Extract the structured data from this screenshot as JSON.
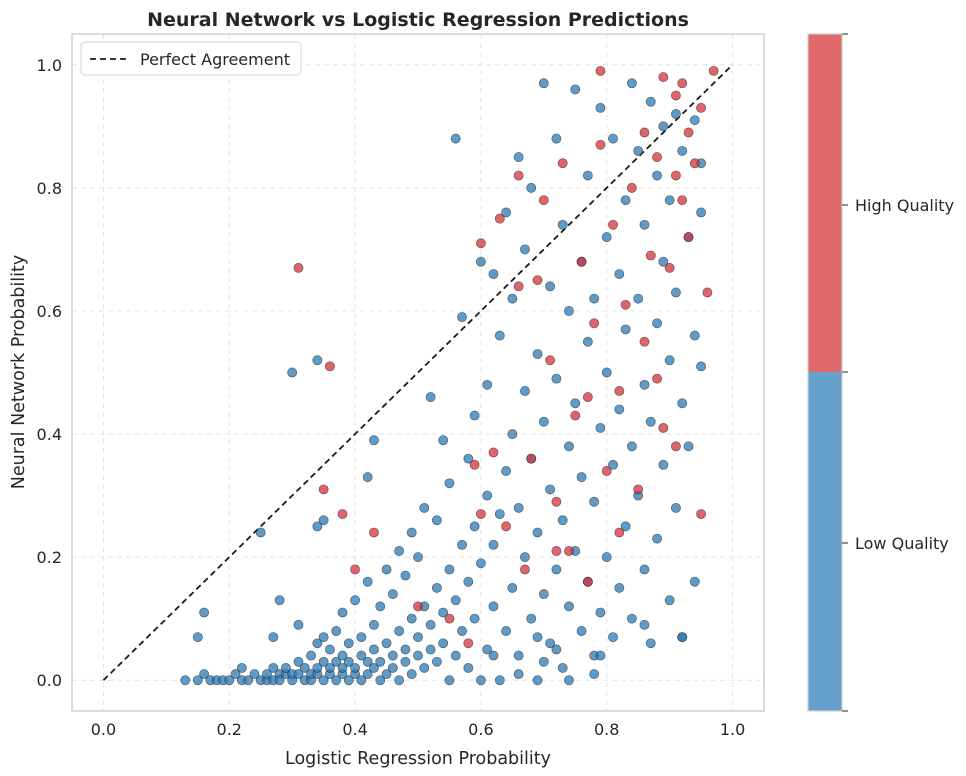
{
  "chart_data": {
    "type": "scatter",
    "title": "Neural Network vs Logistic Regression Predictions",
    "xlabel": "Logistic Regression Probability",
    "ylabel": "Neural Network Probability",
    "xlim": [
      -0.05,
      1.05
    ],
    "ylim": [
      -0.05,
      1.05
    ],
    "xticks": [
      "0.0",
      "0.2",
      "0.4",
      "0.6",
      "0.8",
      "1.0"
    ],
    "yticks": [
      "0.0",
      "0.2",
      "0.4",
      "0.6",
      "0.8",
      "1.0"
    ],
    "grid": true,
    "legend": {
      "placement": "top-left",
      "entries": [
        "Perfect Agreement"
      ]
    },
    "reference_line": {
      "name": "Perfect Agreement",
      "style": "dashed",
      "color": "#1a1a1a",
      "from": [
        0,
        0
      ],
      "to": [
        1,
        1
      ]
    },
    "colorbar": {
      "labels": [
        "High Quality",
        "Low Quality"
      ],
      "colors": {
        "High Quality": "#e0686a",
        "Low Quality": "#65a0cd"
      }
    },
    "point_colors": {
      "High Quality": "#d6303a",
      "Low Quality": "#2b78b4"
    },
    "series": [
      {
        "name": "Low Quality",
        "points": [
          [
            0.13,
            0.0
          ],
          [
            0.15,
            0.0
          ],
          [
            0.16,
            0.01
          ],
          [
            0.17,
            0.0
          ],
          [
            0.18,
            0.0
          ],
          [
            0.19,
            0.0
          ],
          [
            0.2,
            0.0
          ],
          [
            0.21,
            0.01
          ],
          [
            0.22,
            0.02
          ],
          [
            0.22,
            0.0
          ],
          [
            0.23,
            0.0
          ],
          [
            0.24,
            0.01
          ],
          [
            0.25,
            0.0
          ],
          [
            0.26,
            0.0
          ],
          [
            0.26,
            0.01
          ],
          [
            0.27,
            0.02
          ],
          [
            0.27,
            0.0
          ],
          [
            0.28,
            0.01
          ],
          [
            0.28,
            0.0
          ],
          [
            0.29,
            0.01
          ],
          [
            0.29,
            0.02
          ],
          [
            0.3,
            0.0
          ],
          [
            0.3,
            0.01
          ],
          [
            0.31,
            0.01
          ],
          [
            0.31,
            0.03
          ],
          [
            0.32,
            0.0
          ],
          [
            0.32,
            0.02
          ],
          [
            0.33,
            0.0
          ],
          [
            0.33,
            0.01
          ],
          [
            0.33,
            0.04
          ],
          [
            0.34,
            0.01
          ],
          [
            0.34,
            0.02
          ],
          [
            0.34,
            0.06
          ],
          [
            0.35,
            0.0
          ],
          [
            0.35,
            0.03
          ],
          [
            0.35,
            0.07
          ],
          [
            0.36,
            0.01
          ],
          [
            0.36,
            0.02
          ],
          [
            0.36,
            0.05
          ],
          [
            0.37,
            0.0
          ],
          [
            0.37,
            0.03
          ],
          [
            0.37,
            0.08
          ],
          [
            0.38,
            0.01
          ],
          [
            0.38,
            0.02
          ],
          [
            0.38,
            0.04
          ],
          [
            0.38,
            0.11
          ],
          [
            0.39,
            0.0
          ],
          [
            0.39,
            0.03
          ],
          [
            0.39,
            0.06
          ],
          [
            0.4,
            0.01
          ],
          [
            0.4,
            0.02
          ],
          [
            0.4,
            0.13
          ],
          [
            0.41,
            0.0
          ],
          [
            0.41,
            0.04
          ],
          [
            0.41,
            0.07
          ],
          [
            0.42,
            0.01
          ],
          [
            0.42,
            0.03
          ],
          [
            0.42,
            0.16
          ],
          [
            0.43,
            0.02
          ],
          [
            0.43,
            0.05
          ],
          [
            0.43,
            0.09
          ],
          [
            0.44,
            0.0
          ],
          [
            0.44,
            0.03
          ],
          [
            0.44,
            0.12
          ],
          [
            0.45,
            0.01
          ],
          [
            0.45,
            0.06
          ],
          [
            0.45,
            0.18
          ],
          [
            0.46,
            0.02
          ],
          [
            0.46,
            0.04
          ],
          [
            0.46,
            0.14
          ],
          [
            0.47,
            0.0
          ],
          [
            0.47,
            0.08
          ],
          [
            0.47,
            0.21
          ],
          [
            0.48,
            0.03
          ],
          [
            0.48,
            0.05
          ],
          [
            0.48,
            0.17
          ],
          [
            0.49,
            0.01
          ],
          [
            0.49,
            0.1
          ],
          [
            0.49,
            0.24
          ],
          [
            0.5,
            0.04
          ],
          [
            0.5,
            0.07
          ],
          [
            0.5,
            0.2
          ],
          [
            0.51,
            0.02
          ],
          [
            0.51,
            0.12
          ],
          [
            0.51,
            0.28
          ],
          [
            0.52,
            0.05
          ],
          [
            0.52,
            0.09
          ],
          [
            0.52,
            0.46
          ],
          [
            0.53,
            0.03
          ],
          [
            0.53,
            0.15
          ],
          [
            0.53,
            0.26
          ],
          [
            0.54,
            0.06
          ],
          [
            0.54,
            0.11
          ],
          [
            0.54,
            0.39
          ],
          [
            0.55,
            0.0
          ],
          [
            0.55,
            0.18
          ],
          [
            0.55,
            0.32
          ],
          [
            0.56,
            0.04
          ],
          [
            0.56,
            0.13
          ],
          [
            0.56,
            0.88
          ],
          [
            0.57,
            0.08
          ],
          [
            0.57,
            0.22
          ],
          [
            0.57,
            0.59
          ],
          [
            0.58,
            0.02
          ],
          [
            0.58,
            0.16
          ],
          [
            0.58,
            0.36
          ],
          [
            0.59,
            0.1
          ],
          [
            0.59,
            0.25
          ],
          [
            0.59,
            0.43
          ],
          [
            0.6,
            0.0
          ],
          [
            0.6,
            0.19
          ],
          [
            0.6,
            0.68
          ],
          [
            0.61,
            0.05
          ],
          [
            0.61,
            0.3
          ],
          [
            0.61,
            0.48
          ],
          [
            0.62,
            0.12
          ],
          [
            0.62,
            0.22
          ],
          [
            0.62,
            0.66
          ],
          [
            0.63,
            0.0
          ],
          [
            0.63,
            0.27
          ],
          [
            0.63,
            0.56
          ],
          [
            0.64,
            0.08
          ],
          [
            0.64,
            0.34
          ],
          [
            0.64,
            0.76
          ],
          [
            0.65,
            0.15
          ],
          [
            0.65,
            0.4
          ],
          [
            0.65,
            0.62
          ],
          [
            0.66,
            0.04
          ],
          [
            0.66,
            0.28
          ],
          [
            0.66,
            0.85
          ],
          [
            0.67,
            0.2
          ],
          [
            0.67,
            0.47
          ],
          [
            0.67,
            0.7
          ],
          [
            0.68,
            0.1
          ],
          [
            0.68,
            0.36
          ],
          [
            0.68,
            0.8
          ],
          [
            0.69,
            0.0
          ],
          [
            0.69,
            0.24
          ],
          [
            0.69,
            0.53
          ],
          [
            0.7,
            0.14
          ],
          [
            0.7,
            0.42
          ],
          [
            0.7,
            0.97
          ],
          [
            0.71,
            0.06
          ],
          [
            0.71,
            0.31
          ],
          [
            0.71,
            0.64
          ],
          [
            0.72,
            0.18
          ],
          [
            0.72,
            0.49
          ],
          [
            0.72,
            0.88
          ],
          [
            0.73,
            0.02
          ],
          [
            0.73,
            0.26
          ],
          [
            0.73,
            0.74
          ],
          [
            0.74,
            0.12
          ],
          [
            0.74,
            0.38
          ],
          [
            0.74,
            0.6
          ],
          [
            0.75,
            0.21
          ],
          [
            0.75,
            0.45
          ],
          [
            0.75,
            0.96
          ],
          [
            0.76,
            0.08
          ],
          [
            0.76,
            0.33
          ],
          [
            0.76,
            0.68
          ],
          [
            0.77,
            0.16
          ],
          [
            0.77,
            0.55
          ],
          [
            0.77,
            0.82
          ],
          [
            0.78,
            0.04
          ],
          [
            0.78,
            0.29
          ],
          [
            0.78,
            0.62
          ],
          [
            0.79,
            0.11
          ],
          [
            0.79,
            0.41
          ],
          [
            0.79,
            0.93
          ],
          [
            0.8,
            0.2
          ],
          [
            0.8,
            0.5
          ],
          [
            0.8,
            0.72
          ],
          [
            0.81,
            0.07
          ],
          [
            0.81,
            0.35
          ],
          [
            0.81,
            0.88
          ],
          [
            0.82,
            0.15
          ],
          [
            0.82,
            0.44
          ],
          [
            0.82,
            0.66
          ],
          [
            0.83,
            0.25
          ],
          [
            0.83,
            0.57
          ],
          [
            0.83,
            0.78
          ],
          [
            0.84,
            0.1
          ],
          [
            0.84,
            0.38
          ],
          [
            0.84,
            0.97
          ],
          [
            0.85,
            0.3
          ],
          [
            0.85,
            0.62
          ],
          [
            0.85,
            0.86
          ],
          [
            0.86,
            0.18
          ],
          [
            0.86,
            0.48
          ],
          [
            0.86,
            0.74
          ],
          [
            0.87,
            0.06
          ],
          [
            0.87,
            0.42
          ],
          [
            0.87,
            0.94
          ],
          [
            0.88,
            0.23
          ],
          [
            0.88,
            0.58
          ],
          [
            0.88,
            0.82
          ],
          [
            0.89,
            0.35
          ],
          [
            0.89,
            0.68
          ],
          [
            0.89,
            0.9
          ],
          [
            0.9,
            0.13
          ],
          [
            0.9,
            0.52
          ],
          [
            0.9,
            0.78
          ],
          [
            0.91,
            0.28
          ],
          [
            0.91,
            0.63
          ],
          [
            0.91,
            0.92
          ],
          [
            0.92,
            0.07
          ],
          [
            0.92,
            0.45
          ],
          [
            0.92,
            0.86
          ],
          [
            0.93,
            0.38
          ],
          [
            0.93,
            0.72
          ],
          [
            0.94,
            0.16
          ],
          [
            0.94,
            0.56
          ],
          [
            0.94,
            0.91
          ],
          [
            0.95,
            0.51
          ],
          [
            0.95,
            0.76
          ],
          [
            0.95,
            0.84
          ],
          [
            0.3,
            0.5
          ],
          [
            0.34,
            0.52
          ],
          [
            0.35,
            0.26
          ],
          [
            0.34,
            0.25
          ],
          [
            0.43,
            0.39
          ],
          [
            0.42,
            0.33
          ],
          [
            0.25,
            0.24
          ],
          [
            0.16,
            0.11
          ],
          [
            0.15,
            0.07
          ],
          [
            0.28,
            0.13
          ],
          [
            0.27,
            0.07
          ],
          [
            0.31,
            0.09
          ],
          [
            0.62,
            0.04
          ],
          [
            0.66,
            0.01
          ],
          [
            0.7,
            0.03
          ],
          [
            0.74,
            0.0
          ],
          [
            0.69,
            0.07
          ],
          [
            0.72,
            0.05
          ],
          [
            0.78,
            0.01
          ],
          [
            0.79,
            0.04
          ],
          [
            0.86,
            0.09
          ],
          [
            0.92,
            0.07
          ]
        ]
      },
      {
        "name": "High Quality",
        "points": [
          [
            0.31,
            0.67
          ],
          [
            0.36,
            0.51
          ],
          [
            0.35,
            0.31
          ],
          [
            0.38,
            0.27
          ],
          [
            0.4,
            0.18
          ],
          [
            0.43,
            0.24
          ],
          [
            0.5,
            0.12
          ],
          [
            0.55,
            0.1
          ],
          [
            0.58,
            0.06
          ],
          [
            0.6,
            0.27
          ],
          [
            0.62,
            0.37
          ],
          [
            0.63,
            0.75
          ],
          [
            0.64,
            0.25
          ],
          [
            0.66,
            0.82
          ],
          [
            0.67,
            0.18
          ],
          [
            0.68,
            0.36
          ],
          [
            0.69,
            0.65
          ],
          [
            0.7,
            0.78
          ],
          [
            0.71,
            0.52
          ],
          [
            0.72,
            0.29
          ],
          [
            0.73,
            0.84
          ],
          [
            0.74,
            0.21
          ],
          [
            0.75,
            0.43
          ],
          [
            0.76,
            0.68
          ],
          [
            0.77,
            0.16
          ],
          [
            0.78,
            0.58
          ],
          [
            0.79,
            0.87
          ],
          [
            0.8,
            0.34
          ],
          [
            0.81,
            0.74
          ],
          [
            0.82,
            0.24
          ],
          [
            0.83,
            0.61
          ],
          [
            0.84,
            0.8
          ],
          [
            0.85,
            0.31
          ],
          [
            0.86,
            0.55
          ],
          [
            0.87,
            0.69
          ],
          [
            0.88,
            0.85
          ],
          [
            0.89,
            0.41
          ],
          [
            0.89,
            0.98
          ],
          [
            0.9,
            0.67
          ],
          [
            0.91,
            0.95
          ],
          [
            0.91,
            0.38
          ],
          [
            0.92,
            0.78
          ],
          [
            0.92,
            0.97
          ],
          [
            0.93,
            0.89
          ],
          [
            0.93,
            0.72
          ],
          [
            0.94,
            0.84
          ],
          [
            0.95,
            0.27
          ],
          [
            0.95,
            0.93
          ],
          [
            0.96,
            0.63
          ],
          [
            0.97,
            0.99
          ],
          [
            0.88,
            0.49
          ],
          [
            0.82,
            0.47
          ],
          [
            0.77,
            0.46
          ],
          [
            0.72,
            0.21
          ],
          [
            0.66,
            0.64
          ],
          [
            0.6,
            0.71
          ],
          [
            0.59,
            0.35
          ],
          [
            0.79,
            0.99
          ],
          [
            0.86,
            0.89
          ],
          [
            0.91,
            0.82
          ]
        ]
      }
    ]
  }
}
